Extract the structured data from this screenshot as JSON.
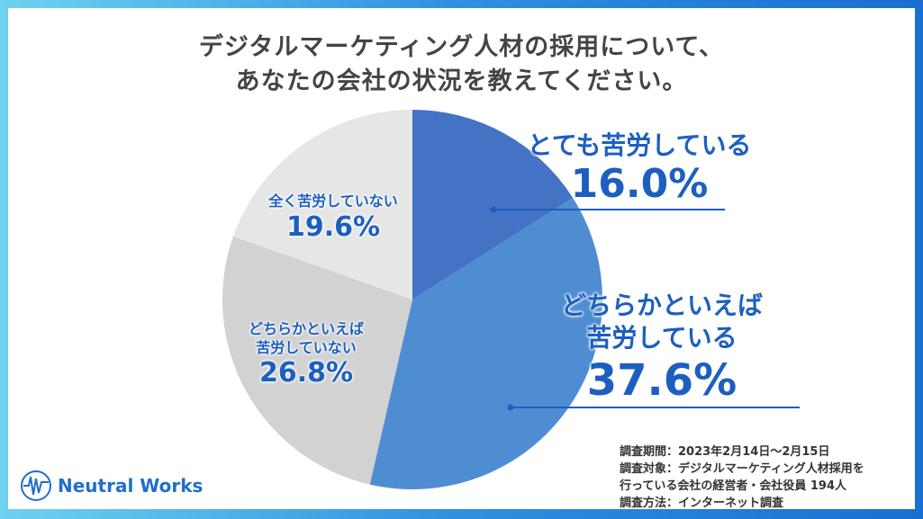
{
  "chart_data": {
    "type": "pie",
    "title": "デジタルマーケティング人材の採用について、あなたの会社の状況を教えてください。",
    "title_lines": [
      "デジタルマーケティング人材の採用について、",
      "あなたの会社の状況を教えてください。"
    ],
    "slices": [
      {
        "label": "とても苦労している",
        "label_lines": [
          "とても苦労している"
        ],
        "value": 16.0,
        "text": "16.0%",
        "color": "#4472C4"
      },
      {
        "label": "どちらかといえば苦労している",
        "label_lines": [
          "どちらかといえば",
          "苦労している"
        ],
        "value": 37.6,
        "text": "37.6%",
        "color": "#4F8DD3"
      },
      {
        "label": "どちらかといえば苦労していない",
        "label_lines": [
          "どちらかといえば",
          "苦労していない"
        ],
        "value": 26.8,
        "text": "26.8%",
        "color": "#D2D2D2"
      },
      {
        "label": "全く苦労していない",
        "label_lines": [
          "全く苦労していない"
        ],
        "value": 19.6,
        "text": "19.6%",
        "color": "#E6E6E6"
      }
    ]
  },
  "notes": [
    "調査期間：2023年2月14日～2月15日",
    "調査対象：デジタルマーケティング人材採用を",
    "行っている会社の経営者・会社役員 194人",
    "調査方法：インターネット調査"
  ],
  "logo": {
    "text": "Neutral Works"
  }
}
